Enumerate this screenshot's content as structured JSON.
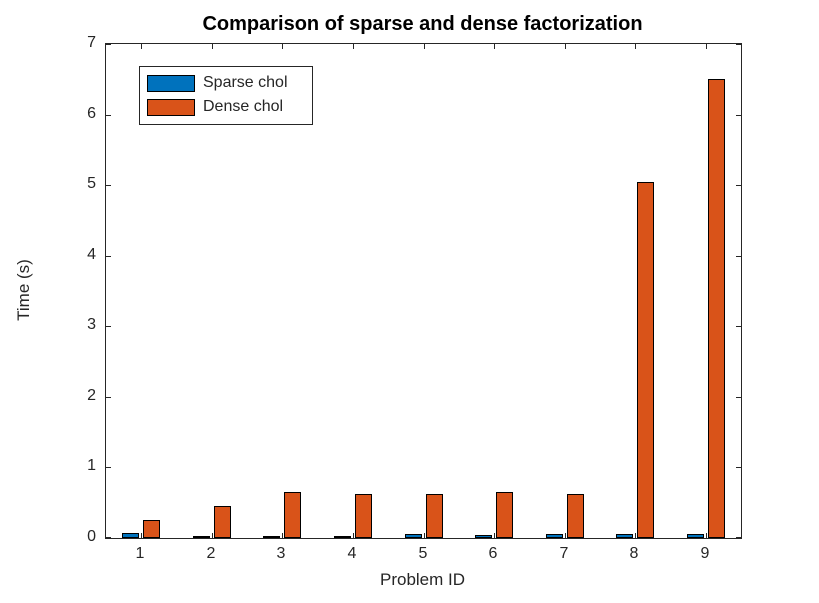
{
  "chart_data": {
    "type": "bar",
    "title": "Comparison of sparse and dense factorization",
    "xlabel": "Problem ID",
    "ylabel": "Time (s)",
    "categories": [
      "1",
      "2",
      "3",
      "4",
      "5",
      "6",
      "7",
      "8",
      "9"
    ],
    "series": [
      {
        "name": "Sparse chol",
        "color": "#0072BD",
        "values": [
          0.07,
          0.035,
          0.02,
          0.02,
          0.05,
          0.04,
          0.05,
          0.05,
          0.05
        ]
      },
      {
        "name": "Dense chol",
        "color": "#D95319",
        "values": [
          0.25,
          0.46,
          0.65,
          0.63,
          0.62,
          0.65,
          0.63,
          5.04,
          6.5
        ]
      }
    ],
    "ylim": [
      0,
      7
    ],
    "yticks": [
      0,
      1,
      2,
      3,
      4,
      5,
      6,
      7
    ],
    "grid": false,
    "legend_position": "top-left",
    "axis_color": "#262626",
    "bar_edge_color": "#000000",
    "background_color": "#FFFFFF"
  }
}
